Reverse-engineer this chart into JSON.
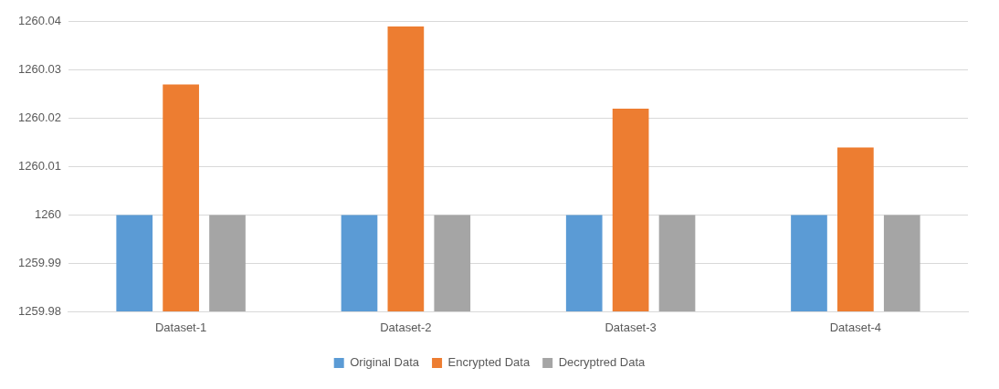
{
  "chart_data": {
    "type": "bar",
    "categories": [
      "Dataset-1",
      "Dataset-2",
      "Dataset-3",
      "Dataset-4"
    ],
    "series": [
      {
        "name": "Original Data",
        "color": "#5b9bd5",
        "values": [
          1260,
          1260,
          1260,
          1260
        ]
      },
      {
        "name": "Encrypted Data",
        "color": "#ed7d31",
        "values": [
          1260.027,
          1260.039,
          1260.022,
          1260.014
        ]
      },
      {
        "name": "Decryptred Data",
        "color": "#a5a5a5",
        "values": [
          1260,
          1260,
          1260,
          1260
        ]
      }
    ],
    "ylim": [
      1259.98,
      1260.04
    ],
    "yticks": [
      1259.98,
      1259.99,
      1260,
      1260.01,
      1260.02,
      1260.03,
      1260.04
    ],
    "grid": "y",
    "legend": "bottom"
  }
}
